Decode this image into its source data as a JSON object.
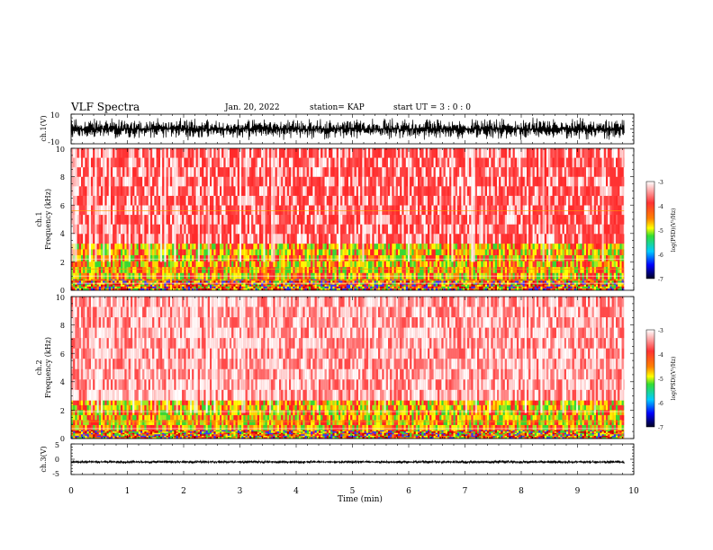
{
  "header": {
    "title": "VLF Spectra",
    "date": "Jan. 20, 2022",
    "station": "station= KAP",
    "start": "start  UT =   3  : 0   : 0"
  },
  "chart_data": [
    {
      "id": "ch1-waveform",
      "type": "line",
      "ylabel": "ch.1(V)",
      "ylim": [
        -10,
        10
      ],
      "yticks": [
        "10",
        "-10"
      ],
      "xlim": [
        0,
        10
      ],
      "color": "#000000",
      "trace": {
        "center": 0,
        "amplitude_typical": 8,
        "x_end_min": 9.83
      }
    },
    {
      "id": "ch1-spectrogram",
      "type": "heatmap",
      "ylabel_top": "ch.1",
      "ylabel": "Frequency (kHz)",
      "ylim": [
        0,
        10
      ],
      "yticks": [
        "0",
        "2",
        "4",
        "6",
        "8",
        "10"
      ],
      "xlim": [
        0,
        10
      ],
      "data_x_end_min": 9.83,
      "bands": [
        {
          "freq_from": 0,
          "freq_to": 0.8,
          "level": "strong"
        },
        {
          "freq_from": 0.8,
          "freq_to": 3.3,
          "level": "high"
        },
        {
          "freq_from": 3.3,
          "freq_to": 10,
          "level": "medium"
        }
      ],
      "lines_khz": [
        0.5,
        0.7,
        1.0,
        1.5,
        2.2,
        5.6
      ],
      "colorbar": {
        "label": "log(PSD)(V²/Hz)",
        "ticks": [
          "-3",
          "-4",
          "-5",
          "-6",
          "-7"
        ],
        "range": [
          -7,
          -3
        ]
      }
    },
    {
      "id": "ch2-spectrogram",
      "type": "heatmap",
      "ylabel_top": "ch.2",
      "ylabel": "Frequency (kHz)",
      "ylim": [
        0,
        10
      ],
      "yticks": [
        "0",
        "2",
        "4",
        "6",
        "8",
        "10"
      ],
      "xlim": [
        0,
        10
      ],
      "data_x_end_min": 9.83,
      "bands": [
        {
          "freq_from": 0,
          "freq_to": 0.6,
          "level": "strong"
        },
        {
          "freq_from": 0.6,
          "freq_to": 2.7,
          "level": "high"
        },
        {
          "freq_from": 2.7,
          "freq_to": 10,
          "level": "low"
        }
      ],
      "lines_khz": [
        0.7,
        1.2,
        1.9
      ],
      "colorbar": {
        "label": "log(PSD)(V²/Hz)",
        "ticks": [
          "-3",
          "-4",
          "-5",
          "-6",
          "-7"
        ],
        "range": [
          -7,
          -3
        ]
      }
    },
    {
      "id": "ch3-waveform",
      "type": "line",
      "ylabel": "ch.3(V)",
      "ylim": [
        -5,
        5
      ],
      "yticks": [
        "5",
        "0",
        "-5"
      ],
      "xlim": [
        0,
        10
      ],
      "color": "#000000",
      "trace": {
        "center": -0.9,
        "amplitude_typical": 0.6,
        "x_end_min": 9.83
      }
    }
  ],
  "xaxis": {
    "label": "Time (min)",
    "ticks": [
      "0",
      "1",
      "2",
      "3",
      "4",
      "5",
      "6",
      "7",
      "8",
      "9",
      "10"
    ]
  }
}
